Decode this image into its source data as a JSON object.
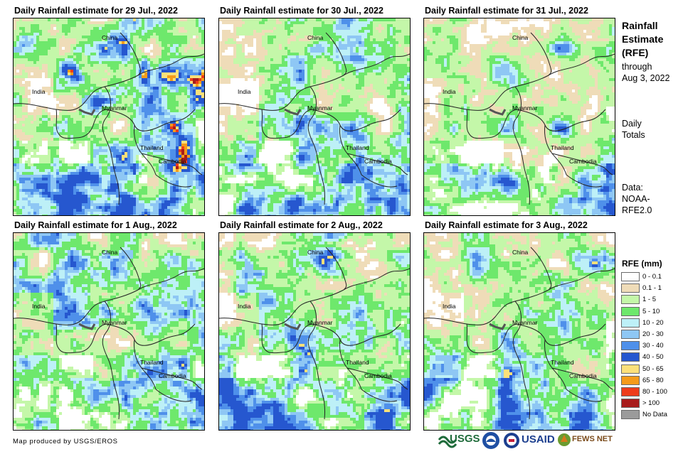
{
  "panels": [
    {
      "title": "Daily Rainfall estimate for 29 Jul., 2022",
      "seed": 11,
      "intensity": 1.15
    },
    {
      "title": "Daily Rainfall estimate for 30 Jul., 2022",
      "seed": 23,
      "intensity": 1.0
    },
    {
      "title": "Daily Rainfall estimate for 31 Jul., 2022",
      "seed": 37,
      "intensity": 0.95
    },
    {
      "title": "Daily Rainfall estimate for 1 Aug., 2022",
      "seed": 41,
      "intensity": 1.05
    },
    {
      "title": "Daily Rainfall estimate for 2 Aug., 2022",
      "seed": 53,
      "intensity": 1.1
    },
    {
      "title": "Daily Rainfall estimate for 3 Aug., 2022",
      "seed": 67,
      "intensity": 1.0
    }
  ],
  "country_labels": {
    "china": "China",
    "india": "India",
    "myanmar": "Myanmar",
    "thailand": "Thailand",
    "cambodia": "Cambodia"
  },
  "sidebar": {
    "title_line1": "Rainfall",
    "title_line2": "Estimate",
    "title_line3": "(RFE)",
    "through": "through",
    "date": "Aug 3, 2022",
    "daily": "Daily",
    "totals": "Totals",
    "data_label": "Data:",
    "source1": "NOAA-",
    "source2": "RFE2.0"
  },
  "legend": {
    "title": "RFE (mm)",
    "items": [
      {
        "label": "0 - 0.1",
        "color": "#ffffff"
      },
      {
        "label": "0.1 - 1",
        "color": "#efdcb8"
      },
      {
        "label": "1 - 5",
        "color": "#c4f7a9"
      },
      {
        "label": "5 - 10",
        "color": "#6ee86c"
      },
      {
        "label": "10 - 20",
        "color": "#bdf0f7"
      },
      {
        "label": "20 - 30",
        "color": "#8ec7f4"
      },
      {
        "label": "30 - 40",
        "color": "#4f90ea"
      },
      {
        "label": "40 - 50",
        "color": "#2657cf"
      },
      {
        "label": "50 - 65",
        "color": "#fbe07a"
      },
      {
        "label": "65 - 80",
        "color": "#f59b1a"
      },
      {
        "label": "80 - 100",
        "color": "#ee3c1b"
      },
      {
        "label": "> 100",
        "color": "#a81c1c"
      },
      {
        "label": "No Data",
        "color": "#9b9b9b"
      }
    ]
  },
  "footer": "Map produced by USGS/EROS",
  "logos": {
    "usgs": "USGS",
    "usaid": "USAID",
    "fewsnet": "FEWS NET"
  }
}
